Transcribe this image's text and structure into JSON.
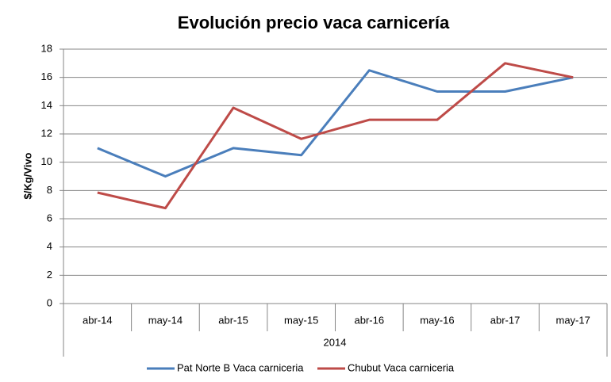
{
  "chart_data": {
    "type": "line",
    "title": "Evolución precio vaca carnicería",
    "y_label": "$/Kg/Vivo",
    "x_label": "2014",
    "categories": [
      "abr-14",
      "may-14",
      "abr-15",
      "may-15",
      "abr-16",
      "may-16",
      "abr-17",
      "may-17"
    ],
    "series": [
      {
        "name": "Pat Norte B Vaca carniceria",
        "color": "#4a7ebb",
        "values": [
          11,
          9,
          11,
          10.5,
          16.5,
          15,
          15,
          16
        ]
      },
      {
        "name": "Chubut Vaca carniceria",
        "color": "#be4b48",
        "values": [
          7.85,
          6.75,
          13.85,
          11.65,
          13,
          13,
          17,
          16
        ]
      }
    ],
    "ylim": [
      0,
      18
    ],
    "yticks": [
      0,
      2,
      4,
      6,
      8,
      10,
      12,
      14,
      16,
      18
    ],
    "grid": true,
    "legend": "bottom"
  }
}
